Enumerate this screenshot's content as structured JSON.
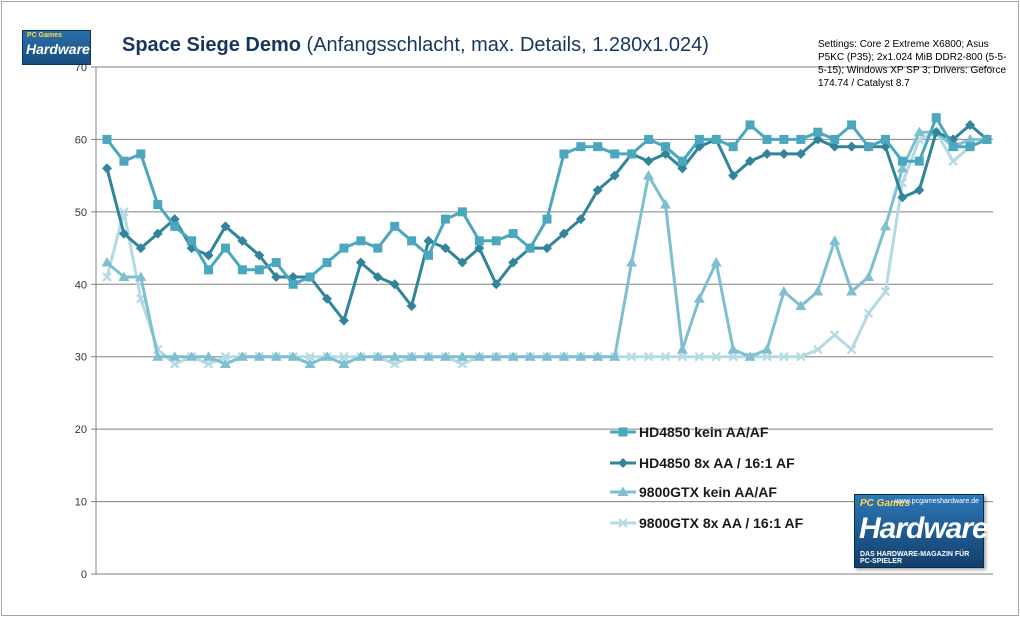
{
  "title_bold": "Space Siege Demo",
  "title_rest": "(Anfangsschlacht, max. Details, 1.280x1.024)",
  "settings_note": "Settings: Core 2 Extreme X6800; Asus P5KC (P35); 2x1.024 MiB DDR2-800 (5-5-5-15); Windows XP SP 3; Drivers: Geforce 174.74 / Catalyst 8.7",
  "logo_small": {
    "brand": "PC Games",
    "text": "Hardware"
  },
  "logo_big": {
    "url": "www.pcgameshardware.de",
    "brand": "PC Games",
    "text": "Hardware",
    "subtitle": "DAS HARDWARE-MAGAZIN FÜR PC-SPIELER"
  },
  "colors": {
    "hd4850_noaa": "#4aa7bd",
    "hd4850_8xaa": "#31849b",
    "gtx9800_noaa": "#7fbfcf",
    "gtx9800_8xaa": "#b4dae3",
    "grid": "#808080",
    "axis": "#808080"
  },
  "chart_data": {
    "type": "line",
    "title": "Space Siege Demo (Anfangsschlacht, max. Details, 1.280x1.024)",
    "xlabel": "",
    "ylabel": "",
    "ylim": [
      0,
      70
    ],
    "yticks": [
      0,
      10,
      20,
      30,
      40,
      50,
      60,
      70
    ],
    "grid": true,
    "legend_position": "bottom-center",
    "series": [
      {
        "name": "HD4850 kein AA/AF",
        "marker": "square",
        "values": [
          60,
          57,
          58,
          51,
          48,
          46,
          42,
          45,
          42,
          42,
          43,
          40,
          41,
          43,
          45,
          46,
          45,
          48,
          46,
          44,
          49,
          50,
          46,
          46,
          47,
          45,
          49,
          58,
          59,
          59,
          58,
          58,
          60,
          59,
          57,
          60,
          60,
          59,
          62,
          60,
          60,
          60,
          61,
          60,
          62,
          59,
          60,
          57,
          57,
          63,
          59,
          59,
          60
        ]
      },
      {
        "name": "HD4850 8x AA / 16:1 AF",
        "marker": "diamond",
        "values": [
          56,
          47,
          45,
          47,
          49,
          45,
          44,
          48,
          46,
          44,
          41,
          41,
          41,
          38,
          35,
          43,
          41,
          40,
          37,
          46,
          45,
          43,
          45,
          40,
          43,
          45,
          45,
          47,
          49,
          53,
          55,
          58,
          57,
          58,
          56,
          59,
          60,
          55,
          57,
          58,
          58,
          58,
          60,
          59,
          59,
          59,
          59,
          52,
          53,
          61,
          60,
          62,
          60
        ]
      },
      {
        "name": "9800GTX kein AA/AF",
        "marker": "triangle",
        "values": [
          43,
          41,
          41,
          30,
          30,
          30,
          30,
          29,
          30,
          30,
          30,
          30,
          29,
          30,
          29,
          30,
          30,
          30,
          30,
          30,
          30,
          30,
          30,
          30,
          30,
          30,
          30,
          30,
          30,
          30,
          30,
          43,
          55,
          51,
          31,
          38,
          43,
          31,
          30,
          31,
          39,
          37,
          39,
          46,
          39,
          41,
          48,
          56,
          61,
          61,
          59,
          60,
          60
        ]
      },
      {
        "name": "9800GTX 8x AA / 16:1 AF",
        "marker": "x",
        "values": [
          41,
          50,
          38,
          31,
          29,
          30,
          29,
          30,
          30,
          30,
          30,
          30,
          30,
          30,
          30,
          30,
          30,
          29,
          30,
          30,
          30,
          29,
          30,
          30,
          30,
          30,
          30,
          30,
          30,
          30,
          30,
          30,
          30,
          30,
          30,
          30,
          30,
          30,
          30,
          30,
          30,
          30,
          31,
          33,
          31,
          36,
          39,
          54,
          60,
          61,
          57,
          59,
          60
        ]
      }
    ]
  }
}
